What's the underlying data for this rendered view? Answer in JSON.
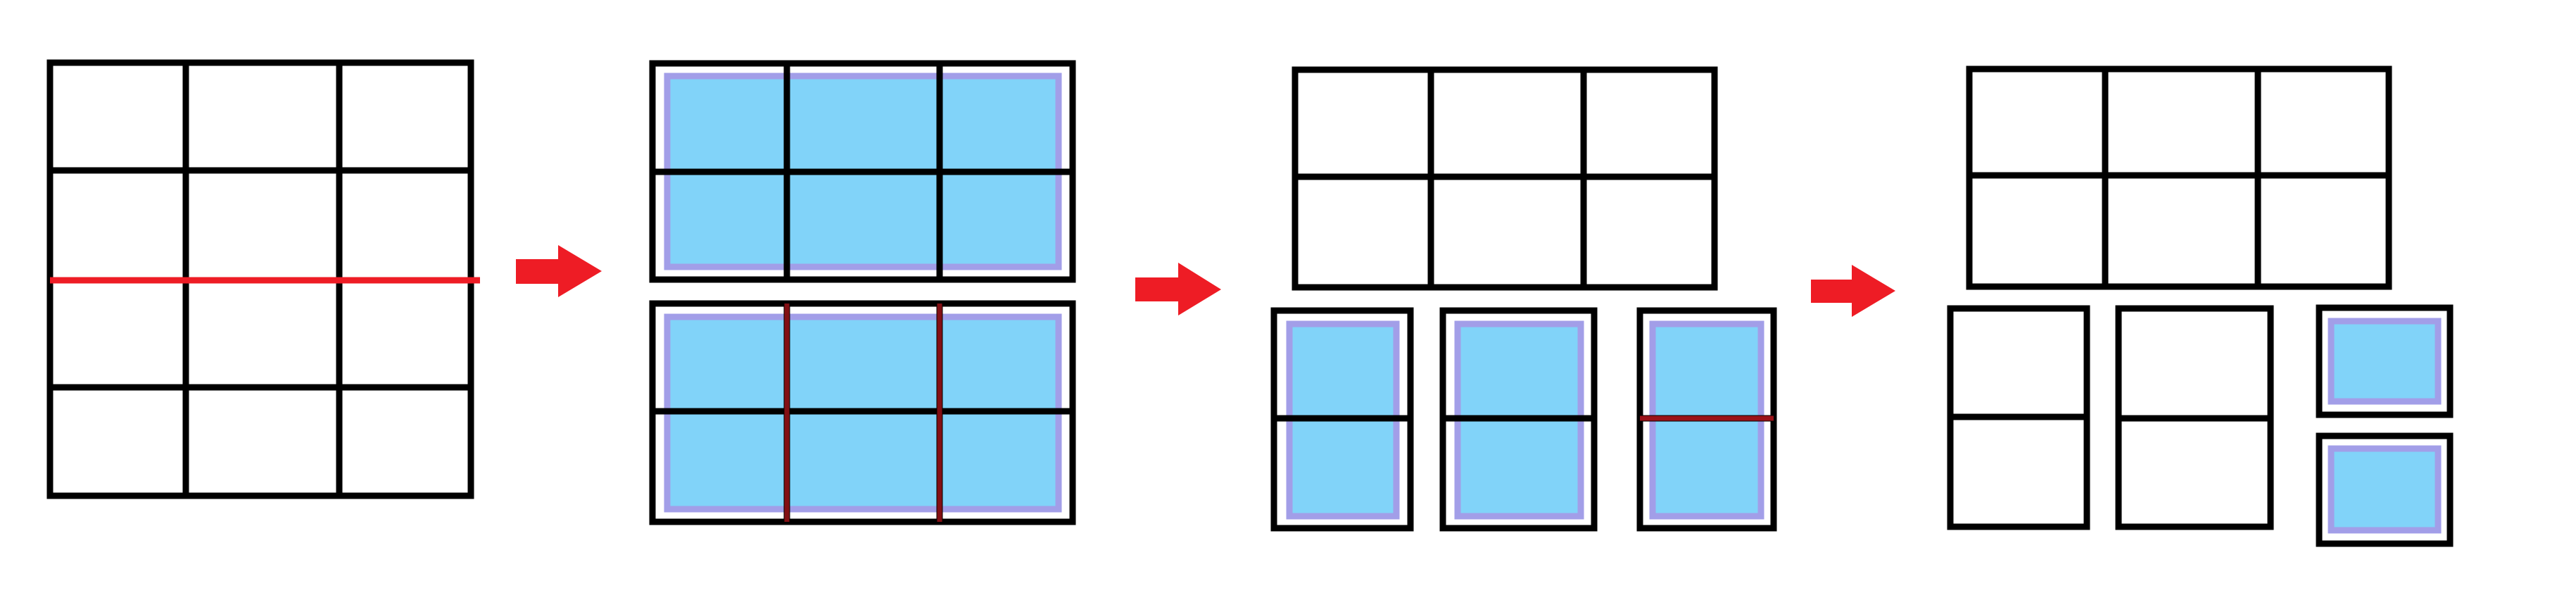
{
  "colors": {
    "grid_stroke": "#000000",
    "cut_line": "#ee1c25",
    "arrow": "#ee1c25",
    "region_fill": "#81d3f9",
    "region_border": "#a29ee8"
  },
  "stages": [
    {
      "name": "stage-1-full-grid",
      "grids": [
        {
          "name": "grid-3x4",
          "cols": 3,
          "rows": 4,
          "highlighted": false,
          "cut": "horizontal-middle"
        }
      ]
    },
    {
      "name": "stage-2-split-into-halves",
      "grids": [
        {
          "name": "grid-top-half",
          "cols": 3,
          "rows": 2,
          "highlighted": true,
          "cut": "none"
        },
        {
          "name": "grid-bottom-half",
          "cols": 3,
          "rows": 2,
          "highlighted": true,
          "cut": "vertical-columns"
        }
      ]
    },
    {
      "name": "stage-3-split-into-columns",
      "grids": [
        {
          "name": "grid-top-half",
          "cols": 3,
          "rows": 2,
          "highlighted": false,
          "cut": "none"
        },
        {
          "name": "column-1",
          "cols": 1,
          "rows": 2,
          "highlighted": true,
          "cut": "none"
        },
        {
          "name": "column-2",
          "cols": 1,
          "rows": 2,
          "highlighted": true,
          "cut": "none"
        },
        {
          "name": "column-3",
          "cols": 1,
          "rows": 2,
          "highlighted": true,
          "cut": "horizontal-middle"
        }
      ]
    },
    {
      "name": "stage-4-split-into-cells",
      "grids": [
        {
          "name": "grid-top-half",
          "cols": 3,
          "rows": 2,
          "highlighted": false,
          "cut": "none"
        },
        {
          "name": "column-1",
          "cols": 1,
          "rows": 2,
          "highlighted": false,
          "cut": "none"
        },
        {
          "name": "column-2",
          "cols": 1,
          "rows": 2,
          "highlighted": false,
          "cut": "none"
        },
        {
          "name": "cell-top",
          "cols": 1,
          "rows": 1,
          "highlighted": true,
          "cut": "none"
        },
        {
          "name": "cell-bottom",
          "cols": 1,
          "rows": 1,
          "highlighted": true,
          "cut": "none"
        }
      ]
    }
  ],
  "arrows": [
    {
      "name": "arrow-1-to-2",
      "direction": "right"
    },
    {
      "name": "arrow-2-to-3",
      "direction": "right"
    },
    {
      "name": "arrow-3-to-4",
      "direction": "right"
    }
  ]
}
